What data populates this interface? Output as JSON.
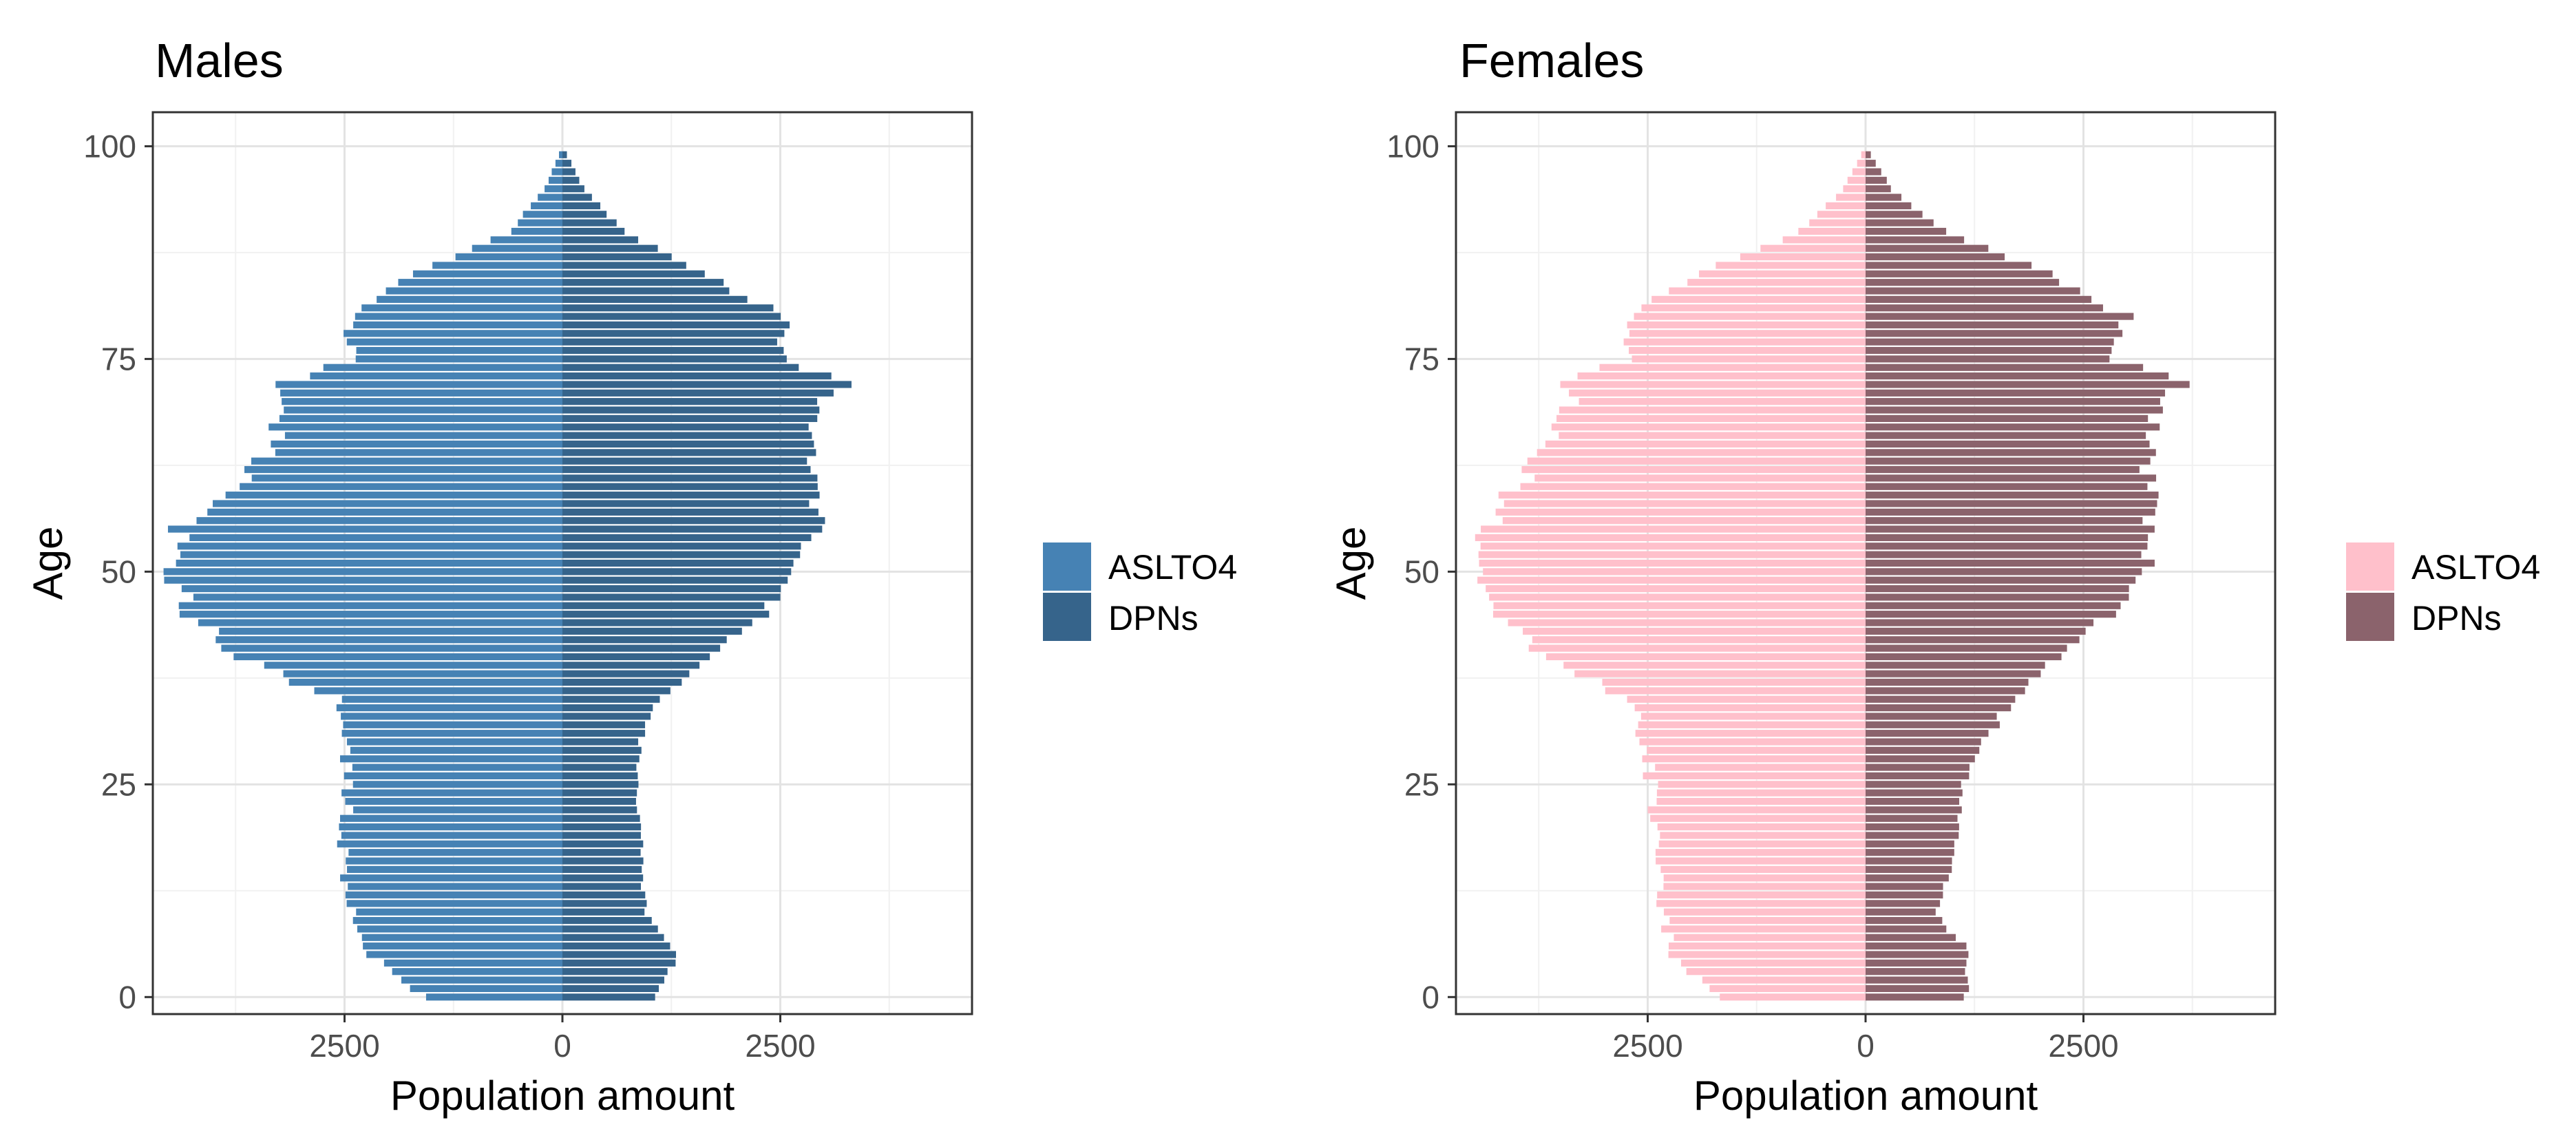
{
  "chart_data": [
    {
      "type": "bar",
      "orientation": "horizontal-pyramid",
      "title": "Males",
      "xlabel": "Population amount",
      "ylabel": "Age",
      "xlim": [
        -4700,
        4700
      ],
      "ylim": [
        -2,
        104
      ],
      "x_ticks": [
        -2500,
        0,
        2500
      ],
      "x_tick_labels": [
        "2500",
        "0",
        "2500"
      ],
      "y_ticks": [
        0,
        25,
        50,
        75,
        100
      ],
      "y_tick_labels": [
        "0",
        "25",
        "50",
        "75",
        "100"
      ],
      "legend": {
        "position": "right",
        "entries": [
          "ASLTO4",
          "DPNs"
        ]
      },
      "series": [
        {
          "name": "ASLTO4",
          "side": "left",
          "color": "#4682b4"
        },
        {
          "name": "DPNs",
          "side": "right",
          "color": "#36648b"
        }
      ],
      "age_anchors": [
        0,
        5,
        10,
        15,
        20,
        25,
        30,
        35,
        40,
        45,
        50,
        55,
        60,
        65,
        70,
        72,
        75,
        80,
        85,
        90,
        95,
        100
      ],
      "left_anchors": [
        1600,
        2200,
        2450,
        2500,
        2500,
        2450,
        2500,
        2600,
        3700,
        4300,
        4450,
        4400,
        3700,
        3300,
        3200,
        3300,
        2400,
        2450,
        1700,
        600,
        200,
        0
      ],
      "right_anchors": [
        1100,
        1300,
        950,
        900,
        900,
        850,
        900,
        1100,
        1700,
        2300,
        2600,
        2950,
        2850,
        2850,
        2900,
        3250,
        2500,
        2550,
        1600,
        700,
        250,
        0
      ]
    },
    {
      "type": "bar",
      "orientation": "horizontal-pyramid",
      "title": "Females",
      "xlabel": "Population amount",
      "ylabel": "Age",
      "xlim": [
        -4700,
        4700
      ],
      "ylim": [
        -2,
        104
      ],
      "x_ticks": [
        -2500,
        0,
        2500
      ],
      "x_tick_labels": [
        "2500",
        "0",
        "2500"
      ],
      "y_ticks": [
        0,
        25,
        50,
        75,
        100
      ],
      "y_tick_labels": [
        "0",
        "25",
        "50",
        "75",
        "100"
      ],
      "legend": {
        "position": "right",
        "entries": [
          "ASLTO4",
          "DPNs"
        ]
      },
      "series": [
        {
          "name": "ASLTO4",
          "side": "left",
          "color": "#ffc0cb"
        },
        {
          "name": "DPNs",
          "side": "right",
          "color": "#8b636c"
        }
      ],
      "age_anchors": [
        0,
        5,
        10,
        15,
        20,
        25,
        30,
        35,
        40,
        45,
        50,
        55,
        60,
        65,
        70,
        72,
        75,
        80,
        85,
        90,
        95,
        100
      ],
      "left_anchors": [
        1700,
        2200,
        2350,
        2400,
        2450,
        2450,
        2550,
        2700,
        3700,
        4300,
        4450,
        4350,
        4000,
        3600,
        3400,
        3500,
        2700,
        2750,
        1900,
        750,
        250,
        0
      ],
      "right_anchors": [
        1150,
        1200,
        800,
        1000,
        1050,
        1100,
        1350,
        1700,
        2200,
        2800,
        3250,
        3300,
        3250,
        3250,
        3350,
        3700,
        2850,
        3000,
        2100,
        900,
        300,
        0
      ]
    }
  ]
}
